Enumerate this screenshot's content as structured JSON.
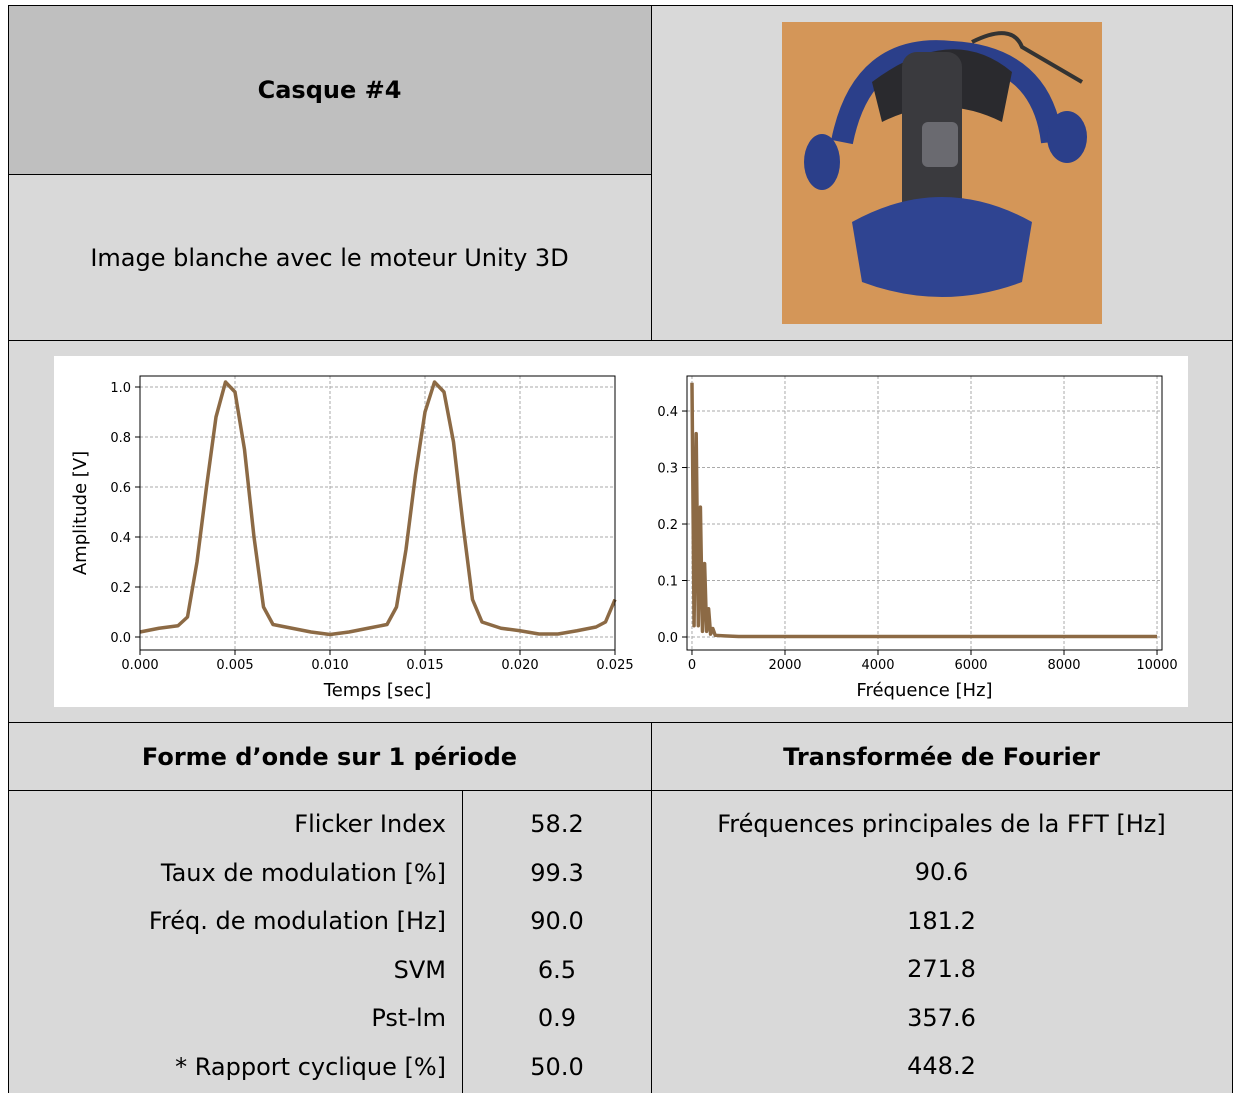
{
  "header": {
    "title": "Casque #4",
    "subtitle": "Image blanche avec le moteur Unity 3D"
  },
  "chart_data": [
    {
      "type": "line",
      "y_label": "Amplitude [V]",
      "x_label": "Temps [sec]",
      "grid": true,
      "xlim": [
        0,
        0.025
      ],
      "ylim": [
        -0.052,
        1.044
      ],
      "xticks": [
        {
          "value": 0,
          "label": "0.000"
        },
        0.005,
        {
          "value": 0.01,
          "label": "0.010"
        },
        0.015,
        {
          "value": 0.02,
          "label": "0.020"
        },
        0.025
      ],
      "yticks": [
        {
          "value": 0,
          "label": "0.0"
        },
        0.2,
        0.4,
        0.6,
        0.8,
        {
          "value": 1,
          "label": "1.0"
        }
      ],
      "x": [
        0,
        0.001,
        0.002,
        0.0025,
        0.003,
        0.0035,
        0.004,
        0.0045,
        0.005,
        0.0055,
        0.006,
        0.0065,
        0.007,
        0.008,
        0.009,
        0.01,
        0.011,
        0.012,
        0.013,
        0.0135,
        0.014,
        0.0145,
        0.015,
        0.0155,
        0.016,
        0.0165,
        0.017,
        0.0175,
        0.018,
        0.019,
        0.02,
        0.021,
        0.022,
        0.023,
        0.024,
        0.0245,
        0.025
      ],
      "series": [
        {
          "color": "#8c6a45",
          "values": [
            0.02,
            0.035,
            0.045,
            0.08,
            0.3,
            0.6,
            0.88,
            1.02,
            0.98,
            0.75,
            0.4,
            0.12,
            0.05,
            0.035,
            0.02,
            0.01,
            0.02,
            0.035,
            0.05,
            0.12,
            0.35,
            0.65,
            0.9,
            1.02,
            0.98,
            0.78,
            0.45,
            0.15,
            0.06,
            0.035,
            0.025,
            0.012,
            0.012,
            0.025,
            0.04,
            0.06,
            0.15
          ]
        }
      ]
    },
    {
      "type": "line",
      "x_label": "Fréquence [Hz]",
      "grid": true,
      "xlim": [
        -107,
        10107
      ],
      "ylim": [
        -0.023,
        0.462
      ],
      "xticks": [
        0,
        2000,
        4000,
        6000,
        8000,
        10000
      ],
      "yticks": [
        {
          "value": 0,
          "label": "0.0"
        },
        0.1,
        0.2,
        0.3,
        0.4
      ],
      "x": [
        0,
        45,
        90.6,
        136,
        181.2,
        226,
        271.8,
        315,
        357.6,
        400,
        448.2,
        500,
        700,
        1000,
        10000
      ],
      "series": [
        {
          "color": "#8c6a45",
          "values": [
            0.45,
            0.02,
            0.36,
            0.02,
            0.23,
            0.01,
            0.13,
            0.01,
            0.05,
            0.005,
            0.015,
            0.003,
            0.002,
            0.001,
            0.001
          ]
        }
      ]
    }
  ],
  "table": {
    "headers": [
      "Forme d’onde sur 1 période",
      "Transformée de Fourier"
    ],
    "left_rows": [
      [
        "Flicker Index",
        "58.2"
      ],
      [
        "Taux de modulation [%]",
        "99.3"
      ],
      [
        "Fréq. de modulation [Hz]",
        "90.0"
      ],
      [
        "SVM",
        "6.5"
      ],
      [
        "Pst-lm",
        "0.9"
      ],
      [
        "* Rapport cyclique [%]",
        "50.0"
      ]
    ],
    "right_header": "Fréquences principales de la FFT [Hz]",
    "right_values": [
      "90.6",
      "181.2",
      "271.8",
      "357.6",
      "448.2"
    ]
  }
}
